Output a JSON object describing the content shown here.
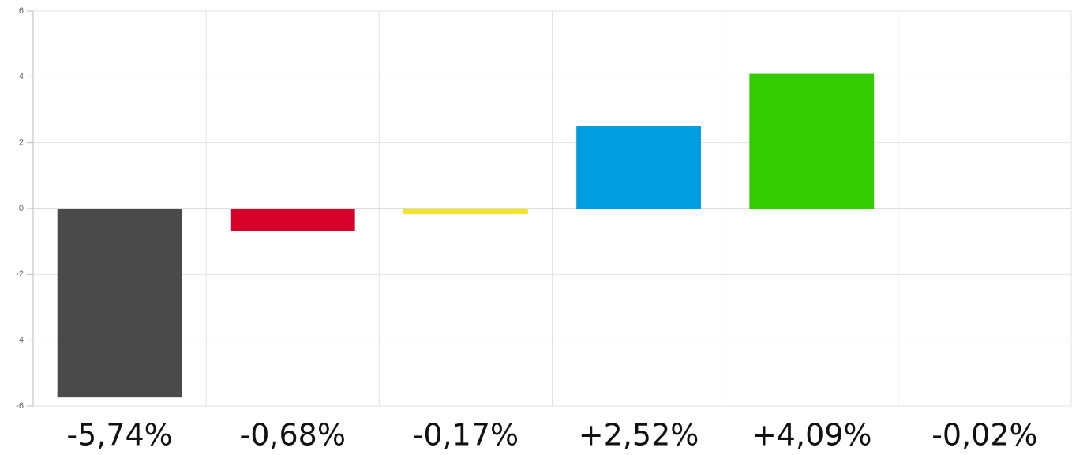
{
  "chart_data": {
    "type": "bar",
    "categories": [
      null,
      null,
      null,
      null,
      null,
      null
    ],
    "values": [
      -5.74,
      -0.68,
      -0.17,
      2.52,
      4.09,
      -0.02
    ],
    "value_labels": [
      "-5,74%",
      "-0,68%",
      "-0,17%",
      "+2,52%",
      "+4,09%",
      "-0,02%"
    ],
    "colors": [
      "#4a4a4a",
      "#d6002a",
      "#f2e42a",
      "#009ee0",
      "#33cc00",
      "#b4c6d6"
    ],
    "ylim": [
      -6,
      6
    ],
    "yticks": [
      -6,
      -4,
      -2,
      0,
      2,
      4,
      6
    ],
    "grid": true
  }
}
